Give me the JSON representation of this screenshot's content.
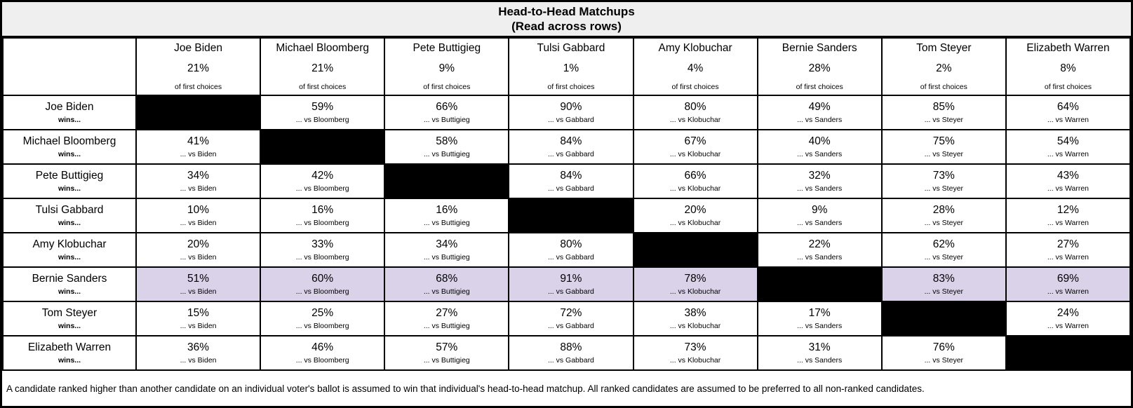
{
  "title": {
    "line1": "Head-to-Head Matchups",
    "line2": "(Read across rows)"
  },
  "columns": [
    {
      "name": "Joe Biden",
      "first_choice_pct": "21%",
      "subnote": "of first choices",
      "vs_label": "... vs Biden"
    },
    {
      "name": "Michael Bloomberg",
      "first_choice_pct": "21%",
      "subnote": "of first choices",
      "vs_label": "... vs Bloomberg"
    },
    {
      "name": "Pete Buttigieg",
      "first_choice_pct": "9%",
      "subnote": "of first choices",
      "vs_label": "... vs Buttigieg"
    },
    {
      "name": "Tulsi Gabbard",
      "first_choice_pct": "1%",
      "subnote": "of first choices",
      "vs_label": "... vs Gabbard"
    },
    {
      "name": "Amy Klobuchar",
      "first_choice_pct": "4%",
      "subnote": "of first choices",
      "vs_label": "... vs Klobuchar"
    },
    {
      "name": "Bernie Sanders",
      "first_choice_pct": "28%",
      "subnote": "of first choices",
      "vs_label": "... vs Sanders"
    },
    {
      "name": "Tom Steyer",
      "first_choice_pct": "2%",
      "subnote": "of first choices",
      "vs_label": "... vs Steyer"
    },
    {
      "name": "Elizabeth Warren",
      "first_choice_pct": "8%",
      "subnote": "of first choices",
      "vs_label": "... vs Warren"
    }
  ],
  "rows": [
    {
      "name": "Joe Biden",
      "wins_label": "wins...",
      "highlight": false,
      "cells": [
        null,
        "59%",
        "66%",
        "90%",
        "80%",
        "49%",
        "85%",
        "64%"
      ]
    },
    {
      "name": "Michael Bloomberg",
      "wins_label": "wins...",
      "highlight": false,
      "cells": [
        "41%",
        null,
        "58%",
        "84%",
        "67%",
        "40%",
        "75%",
        "54%"
      ]
    },
    {
      "name": "Pete Buttigieg",
      "wins_label": "wins...",
      "highlight": false,
      "cells": [
        "34%",
        "42%",
        null,
        "84%",
        "66%",
        "32%",
        "73%",
        "43%"
      ]
    },
    {
      "name": "Tulsi Gabbard",
      "wins_label": "wins...",
      "highlight": false,
      "cells": [
        "10%",
        "16%",
        "16%",
        null,
        "20%",
        "9%",
        "28%",
        "12%"
      ]
    },
    {
      "name": "Amy Klobuchar",
      "wins_label": "wins...",
      "highlight": false,
      "cells": [
        "20%",
        "33%",
        "34%",
        "80%",
        null,
        "22%",
        "62%",
        "27%"
      ]
    },
    {
      "name": "Bernie Sanders",
      "wins_label": "wins...",
      "highlight": true,
      "cells": [
        "51%",
        "60%",
        "68%",
        "91%",
        "78%",
        null,
        "83%",
        "69%"
      ]
    },
    {
      "name": "Tom Steyer",
      "wins_label": "wins...",
      "highlight": false,
      "cells": [
        "15%",
        "25%",
        "27%",
        "72%",
        "38%",
        "17%",
        null,
        "24%"
      ]
    },
    {
      "name": "Elizabeth Warren",
      "wins_label": "wins...",
      "highlight": false,
      "cells": [
        "36%",
        "46%",
        "57%",
        "88%",
        "73%",
        "31%",
        "76%",
        null
      ]
    }
  ],
  "footer": "A candidate ranked higher than another candidate on an individual voter's ballot is assumed to win that individual's head-to-head matchup. All ranked candidates are assumed to be preferred to all non-ranked candidates.",
  "colors": {
    "title_bg": "#efefef",
    "highlight_row_bg": "#d9d2e9",
    "diagonal_cell_bg": "#000000",
    "border": "#000000"
  },
  "chart_data": {
    "type": "table",
    "title": "Head-to-Head Matchups (Read across rows)",
    "candidates": [
      "Joe Biden",
      "Michael Bloomberg",
      "Pete Buttigieg",
      "Tulsi Gabbard",
      "Amy Klobuchar",
      "Bernie Sanders",
      "Tom Steyer",
      "Elizabeth Warren"
    ],
    "first_choice_pct": [
      21,
      21,
      9,
      1,
      4,
      28,
      2,
      8
    ],
    "win_matrix_pct_row_beats_column": [
      [
        null,
        59,
        66,
        90,
        80,
        49,
        85,
        64
      ],
      [
        41,
        null,
        58,
        84,
        67,
        40,
        75,
        54
      ],
      [
        34,
        42,
        null,
        84,
        66,
        32,
        73,
        43
      ],
      [
        10,
        16,
        16,
        null,
        20,
        9,
        28,
        12
      ],
      [
        20,
        33,
        34,
        80,
        null,
        22,
        62,
        27
      ],
      [
        51,
        60,
        68,
        91,
        78,
        null,
        83,
        69
      ],
      [
        15,
        25,
        27,
        72,
        38,
        17,
        null,
        24
      ],
      [
        36,
        46,
        57,
        88,
        73,
        31,
        76,
        null
      ]
    ],
    "highlighted_row": "Bernie Sanders",
    "note": "A candidate ranked higher than another candidate on an individual voter's ballot is assumed to win that individual's head-to-head matchup. All ranked candidates are assumed to be preferred to all non-ranked candidates."
  }
}
